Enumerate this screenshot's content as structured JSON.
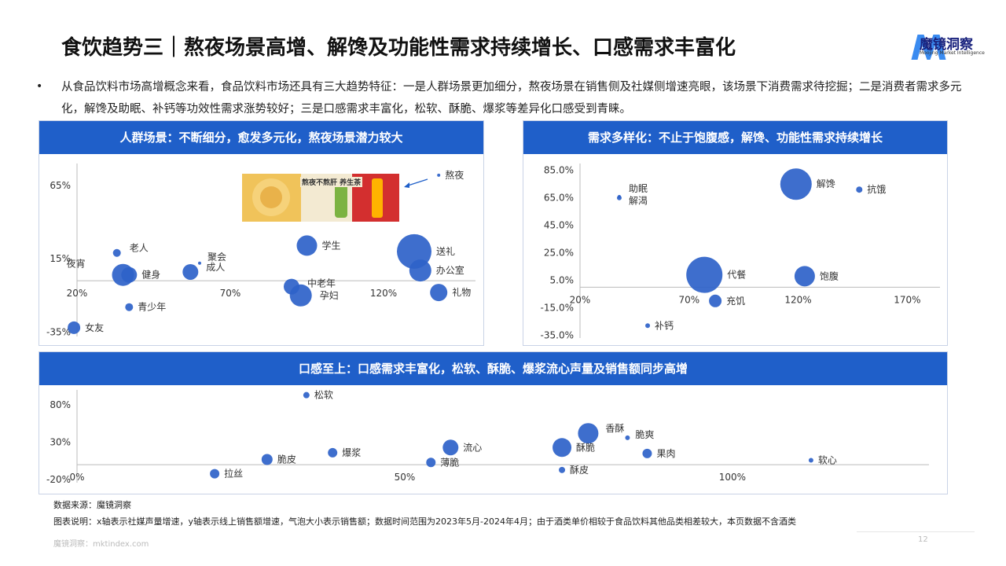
{
  "title": "食饮趋势三｜熬夜场景高增、解馋及功能性需求持续增长、口感需求丰富化",
  "logo": {
    "text": "魔镜洞察",
    "sub": "Moojing Market Intelligence"
  },
  "intro": "从食品饮料市场高增概念来看，食品饮料市场还具有三大趋势特征：一是人群场景更加细分，熬夜场景在销售侧及社媒侧增速亮眼，该场景下消费需求待挖掘；二是消费者需求多元化，解馋及助眠、补钙等功效性需求涨势较好；三是口感需求丰富化，松软、酥脆、爆浆等差异化口感受到青睐。",
  "photo": {
    "caption": "熬夜不熬肝 养生茶"
  },
  "panels": {
    "p1": {
      "header": "人群场景：不断细分，愈发多元化，熬夜场景潜力较大"
    },
    "p2": {
      "header": "需求多样化：不止于饱腹感，解馋、功能性需求持续增长"
    },
    "p3": {
      "header": "口感至上：口感需求丰富化，松软、酥脆、爆浆流心声量及销售额同步高增"
    }
  },
  "source": "数据来源：魔镜洞察",
  "note": "图表说明：x轴表示社媒声量增速，y轴表示线上销售额增速，气泡大小表示销售额；数据时间范围为2023年5月-2024年4月；由于酒类单价相较于食品饮料其他品类相差较大，本页数据不含酒类",
  "footer": "魔镜洞察：mktindex.com",
  "page_number": "12",
  "colors": {
    "accent": "#1f5fc9",
    "bubble": "#2e62c9"
  },
  "chart_data": [
    {
      "type": "scatter",
      "xlabel": "",
      "ylabel": "",
      "xlim": [
        0.2,
        1.5
      ],
      "ylim": [
        -0.38,
        0.8
      ],
      "x_ticks": [
        "20%",
        "70%",
        "120%"
      ],
      "x_tick_values": [
        0.2,
        0.7,
        1.2
      ],
      "y_ticks": [
        "65%",
        "15%",
        "-35%"
      ],
      "y_tick_values": [
        0.65,
        0.15,
        -0.35
      ],
      "points": [
        {
          "label": "熬夜",
          "x": 1.38,
          "y": 0.72,
          "size": 2
        },
        {
          "label": "学生",
          "x": 0.95,
          "y": 0.24,
          "size": 13
        },
        {
          "label": "送礼",
          "x": 1.3,
          "y": 0.2,
          "size": 22
        },
        {
          "label": "办公室",
          "x": 1.32,
          "y": 0.07,
          "size": 14
        },
        {
          "label": "礼物",
          "x": 1.38,
          "y": -0.08,
          "size": 11
        },
        {
          "label": "老人",
          "x": 0.33,
          "y": 0.19,
          "size": 5
        },
        {
          "label": "聚会",
          "x": 0.6,
          "y": 0.12,
          "size": 2
        },
        {
          "label": "成人",
          "x": 0.57,
          "y": 0.06,
          "size": 10
        },
        {
          "label": "夜宵",
          "x": 0.35,
          "y": 0.04,
          "size": 14
        },
        {
          "label": "健身",
          "x": 0.37,
          "y": 0.04,
          "size": 10
        },
        {
          "label": "中老年",
          "x": 0.9,
          "y": -0.04,
          "size": 10
        },
        {
          "label": "孕妇",
          "x": 0.93,
          "y": -0.1,
          "size": 14
        },
        {
          "label": "青少年",
          "x": 0.37,
          "y": -0.18,
          "size": 5
        },
        {
          "label": "女友",
          "x": 0.19,
          "y": -0.32,
          "size": 8
        }
      ]
    },
    {
      "type": "scatter",
      "xlabel": "",
      "ylabel": "",
      "xlim": [
        0.2,
        1.85
      ],
      "ylim": [
        -0.37,
        0.9
      ],
      "x_ticks": [
        "20%",
        "70%",
        "120%",
        "170%"
      ],
      "x_tick_values": [
        0.2,
        0.7,
        1.2,
        1.7
      ],
      "y_ticks": [
        "85.0%",
        "65.0%",
        "45.0%",
        "25.0%",
        "5.0%",
        "-15.0%",
        "-35.0%"
      ],
      "y_tick_values": [
        0.85,
        0.65,
        0.45,
        0.25,
        0.05,
        -0.15,
        -0.35
      ],
      "points": [
        {
          "label": "助眠",
          "x": 0.38,
          "y": 0.66,
          "size": 1
        },
        {
          "label": "解渴",
          "x": 0.38,
          "y": 0.65,
          "size": 3
        },
        {
          "label": "解馋",
          "x": 1.19,
          "y": 0.75,
          "size": 20
        },
        {
          "label": "抗饿",
          "x": 1.48,
          "y": 0.71,
          "size": 4
        },
        {
          "label": "代餐",
          "x": 0.77,
          "y": 0.09,
          "size": 23
        },
        {
          "label": "饱腹",
          "x": 1.23,
          "y": 0.08,
          "size": 13
        },
        {
          "label": "充饥",
          "x": 0.82,
          "y": -0.1,
          "size": 8
        },
        {
          "label": "补钙",
          "x": 0.51,
          "y": -0.28,
          "size": 3
        }
      ]
    },
    {
      "type": "scatter",
      "xlabel": "",
      "ylabel": "",
      "xlim": [
        0.0,
        1.3
      ],
      "ylim": [
        -0.24,
        1.0
      ],
      "x_ticks": [
        "0%",
        "50%",
        "100%"
      ],
      "x_tick_values": [
        0.0,
        0.5,
        1.0
      ],
      "y_ticks": [
        "80%",
        "30%",
        "-20%"
      ],
      "y_tick_values": [
        0.8,
        0.3,
        -0.2
      ],
      "points": [
        {
          "label": "松软",
          "x": 0.35,
          "y": 0.93,
          "size": 4
        },
        {
          "label": "香酥",
          "x": 0.78,
          "y": 0.42,
          "size": 13
        },
        {
          "label": "脆爽",
          "x": 0.84,
          "y": 0.36,
          "size": 3
        },
        {
          "label": "流心",
          "x": 0.57,
          "y": 0.23,
          "size": 10
        },
        {
          "label": "酥脆",
          "x": 0.74,
          "y": 0.23,
          "size": 12
        },
        {
          "label": "爆浆",
          "x": 0.39,
          "y": 0.16,
          "size": 6
        },
        {
          "label": "果肉",
          "x": 0.87,
          "y": 0.15,
          "size": 6
        },
        {
          "label": "脆皮",
          "x": 0.29,
          "y": 0.07,
          "size": 7
        },
        {
          "label": "薄脆",
          "x": 0.54,
          "y": 0.03,
          "size": 6
        },
        {
          "label": "软心",
          "x": 1.12,
          "y": 0.06,
          "size": 3
        },
        {
          "label": "酥皮",
          "x": 0.74,
          "y": -0.07,
          "size": 4
        },
        {
          "label": "拉丝",
          "x": 0.21,
          "y": -0.12,
          "size": 6
        }
      ]
    }
  ]
}
